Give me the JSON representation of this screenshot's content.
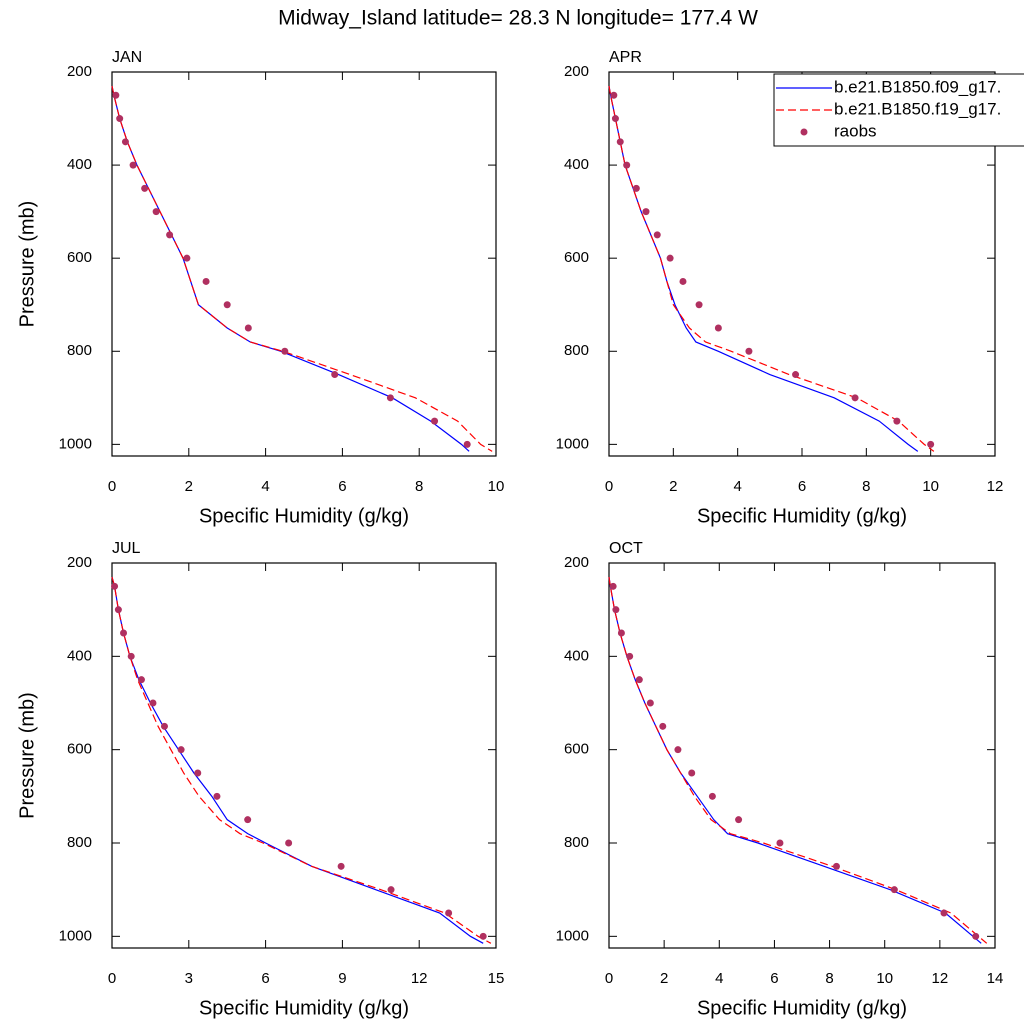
{
  "page_title": "Midway_Island  latitude= 28.3 N longitude= 177.4 W",
  "chart_data": [
    {
      "type": "line",
      "title": "JAN",
      "xlabel": "Specific Humidity (g/kg)",
      "ylabel": "Pressure (mb)",
      "xlim": [
        0,
        10
      ],
      "xticks": [
        0,
        2,
        4,
        6,
        8,
        10
      ],
      "ylim": [
        200,
        1025
      ],
      "yticks": [
        200,
        400,
        600,
        800,
        1000
      ],
      "y_reversed": true,
      "series": [
        {
          "color": "#0000ff",
          "mode": "lines",
          "dash": false,
          "x": [
            0,
            0.05,
            0.2,
            0.4,
            0.65,
            0.95,
            1.25,
            1.55,
            1.85,
            2.05,
            2.25,
            3.0,
            3.6,
            4.4,
            5.9,
            7.3,
            8.3,
            9.1,
            9.3
          ],
          "y": [
            230,
            250,
            300,
            350,
            400,
            450,
            500,
            550,
            600,
            650,
            700,
            750,
            780,
            800,
            850,
            900,
            950,
            1000,
            1015
          ]
        },
        {
          "color": "#ff0000",
          "mode": "lines",
          "dash": true,
          "x": [
            0,
            0.05,
            0.2,
            0.4,
            0.65,
            0.95,
            1.25,
            1.55,
            1.85,
            2.05,
            2.25,
            3.0,
            3.6,
            4.45,
            6.2,
            7.9,
            9.0,
            9.6,
            9.9
          ],
          "y": [
            230,
            250,
            300,
            350,
            400,
            450,
            500,
            550,
            600,
            650,
            700,
            750,
            780,
            800,
            850,
            900,
            950,
            1000,
            1015
          ]
        },
        {
          "color": "#b03060",
          "mode": "markers",
          "x": [
            0.1,
            0.2,
            0.35,
            0.55,
            0.85,
            1.15,
            1.5,
            1.95,
            2.45,
            3.0,
            3.55,
            4.5,
            5.8,
            7.25,
            8.4,
            9.25
          ],
          "y": [
            250,
            300,
            350,
            400,
            450,
            500,
            550,
            600,
            650,
            700,
            750,
            800,
            850,
            900,
            950,
            1000
          ]
        }
      ]
    },
    {
      "type": "line",
      "title": "APR",
      "xlabel": "Specific Humidity (g/kg)",
      "legend": "upper right",
      "xlim": [
        0,
        12
      ],
      "xticks": [
        0,
        2,
        4,
        6,
        8,
        10,
        12
      ],
      "ylim": [
        200,
        1025
      ],
      "yticks": [
        200,
        400,
        600,
        800,
        1000
      ],
      "y_reversed": true,
      "series": [
        {
          "name": "b.e21.B1850.f09_g17.",
          "color": "#0000ff",
          "mode": "lines",
          "dash": false,
          "x": [
            0,
            0.05,
            0.2,
            0.35,
            0.5,
            0.75,
            1.0,
            1.3,
            1.6,
            1.8,
            2.05,
            2.4,
            2.7,
            3.4,
            5.0,
            7.0,
            8.4,
            9.3,
            9.6
          ],
          "y": [
            230,
            250,
            300,
            350,
            400,
            450,
            500,
            550,
            600,
            650,
            700,
            750,
            780,
            800,
            850,
            900,
            950,
            1000,
            1015
          ]
        },
        {
          "name": "b.e21.B1850.f19_g17.",
          "color": "#ff0000",
          "mode": "lines",
          "dash": true,
          "x": [
            0,
            0.05,
            0.2,
            0.35,
            0.5,
            0.75,
            1.0,
            1.3,
            1.6,
            1.8,
            2.0,
            2.5,
            3.0,
            3.8,
            5.6,
            7.7,
            9.0,
            9.8,
            10.1
          ],
          "y": [
            230,
            250,
            300,
            350,
            400,
            450,
            500,
            550,
            600,
            650,
            700,
            750,
            780,
            800,
            850,
            900,
            950,
            1000,
            1015
          ]
        },
        {
          "name": "raobs",
          "color": "#b03060",
          "mode": "markers",
          "x": [
            0.15,
            0.2,
            0.35,
            0.55,
            0.85,
            1.15,
            1.5,
            1.9,
            2.3,
            2.8,
            3.4,
            4.35,
            5.8,
            7.65,
            8.95,
            10.0
          ],
          "y": [
            250,
            300,
            350,
            400,
            450,
            500,
            550,
            600,
            650,
            700,
            750,
            800,
            850,
            900,
            950,
            1000
          ]
        }
      ]
    },
    {
      "type": "line",
      "title": "JUL",
      "xlabel": "Specific Humidity (g/kg)",
      "ylabel": "Pressure (mb)",
      "xlim": [
        0,
        15
      ],
      "xticks": [
        0,
        3,
        6,
        9,
        12,
        15
      ],
      "ylim": [
        200,
        1025
      ],
      "yticks": [
        200,
        400,
        600,
        800,
        1000
      ],
      "y_reversed": true,
      "series": [
        {
          "color": "#0000ff",
          "mode": "lines",
          "dash": false,
          "x": [
            0,
            0.1,
            0.25,
            0.45,
            0.7,
            1.05,
            1.5,
            2.0,
            2.6,
            3.2,
            3.9,
            4.5,
            5.3,
            6.0,
            7.8,
            10.3,
            12.8,
            14.0,
            14.5
          ],
          "y": [
            230,
            250,
            300,
            350,
            400,
            450,
            500,
            550,
            600,
            650,
            700,
            750,
            780,
            800,
            850,
            900,
            950,
            1000,
            1015
          ]
        },
        {
          "color": "#ff0000",
          "mode": "lines",
          "dash": true,
          "x": [
            0,
            0.1,
            0.25,
            0.45,
            0.7,
            1.0,
            1.4,
            1.8,
            2.3,
            2.8,
            3.4,
            4.2,
            5.0,
            5.9,
            7.8,
            10.5,
            13.0,
            14.3,
            14.8
          ],
          "y": [
            230,
            250,
            300,
            350,
            400,
            450,
            500,
            550,
            600,
            650,
            700,
            750,
            780,
            800,
            850,
            900,
            950,
            1000,
            1015
          ]
        },
        {
          "color": "#b03060",
          "mode": "markers",
          "x": [
            0.1,
            0.25,
            0.45,
            0.75,
            1.15,
            1.6,
            2.05,
            2.7,
            3.35,
            4.1,
            5.3,
            6.9,
            8.95,
            10.9,
            13.15,
            14.5
          ],
          "y": [
            250,
            300,
            350,
            400,
            450,
            500,
            550,
            600,
            650,
            700,
            750,
            800,
            850,
            900,
            950,
            1000
          ]
        }
      ]
    },
    {
      "type": "line",
      "title": "OCT",
      "xlabel": "Specific Humidity (g/kg)",
      "xlim": [
        0,
        14
      ],
      "xticks": [
        0,
        2,
        4,
        6,
        8,
        10,
        12,
        14
      ],
      "ylim": [
        200,
        1025
      ],
      "yticks": [
        200,
        400,
        600,
        800,
        1000
      ],
      "y_reversed": true,
      "series": [
        {
          "color": "#0000ff",
          "mode": "lines",
          "dash": false,
          "x": [
            0,
            0.05,
            0.2,
            0.4,
            0.65,
            0.95,
            1.3,
            1.7,
            2.1,
            2.6,
            3.2,
            3.8,
            4.3,
            5.4,
            7.8,
            10.2,
            12.2,
            13.2,
            13.5
          ],
          "y": [
            230,
            250,
            300,
            350,
            400,
            450,
            500,
            550,
            600,
            650,
            700,
            750,
            780,
            800,
            850,
            900,
            950,
            1000,
            1015
          ]
        },
        {
          "color": "#ff0000",
          "mode": "lines",
          "dash": true,
          "x": [
            0,
            0.05,
            0.2,
            0.4,
            0.65,
            0.95,
            1.3,
            1.7,
            2.1,
            2.6,
            3.1,
            3.7,
            4.4,
            5.6,
            8.1,
            10.4,
            12.4,
            13.4,
            13.7
          ],
          "y": [
            230,
            250,
            300,
            350,
            400,
            450,
            500,
            550,
            600,
            650,
            700,
            750,
            780,
            800,
            850,
            900,
            950,
            1000,
            1015
          ]
        },
        {
          "color": "#b03060",
          "mode": "markers",
          "x": [
            0.15,
            0.25,
            0.45,
            0.75,
            1.1,
            1.5,
            1.95,
            2.5,
            3.0,
            3.75,
            4.7,
            6.2,
            8.25,
            10.35,
            12.15,
            13.3
          ],
          "y": [
            250,
            300,
            350,
            400,
            450,
            500,
            550,
            600,
            650,
            700,
            750,
            800,
            850,
            900,
            950,
            1000
          ]
        }
      ]
    }
  ]
}
